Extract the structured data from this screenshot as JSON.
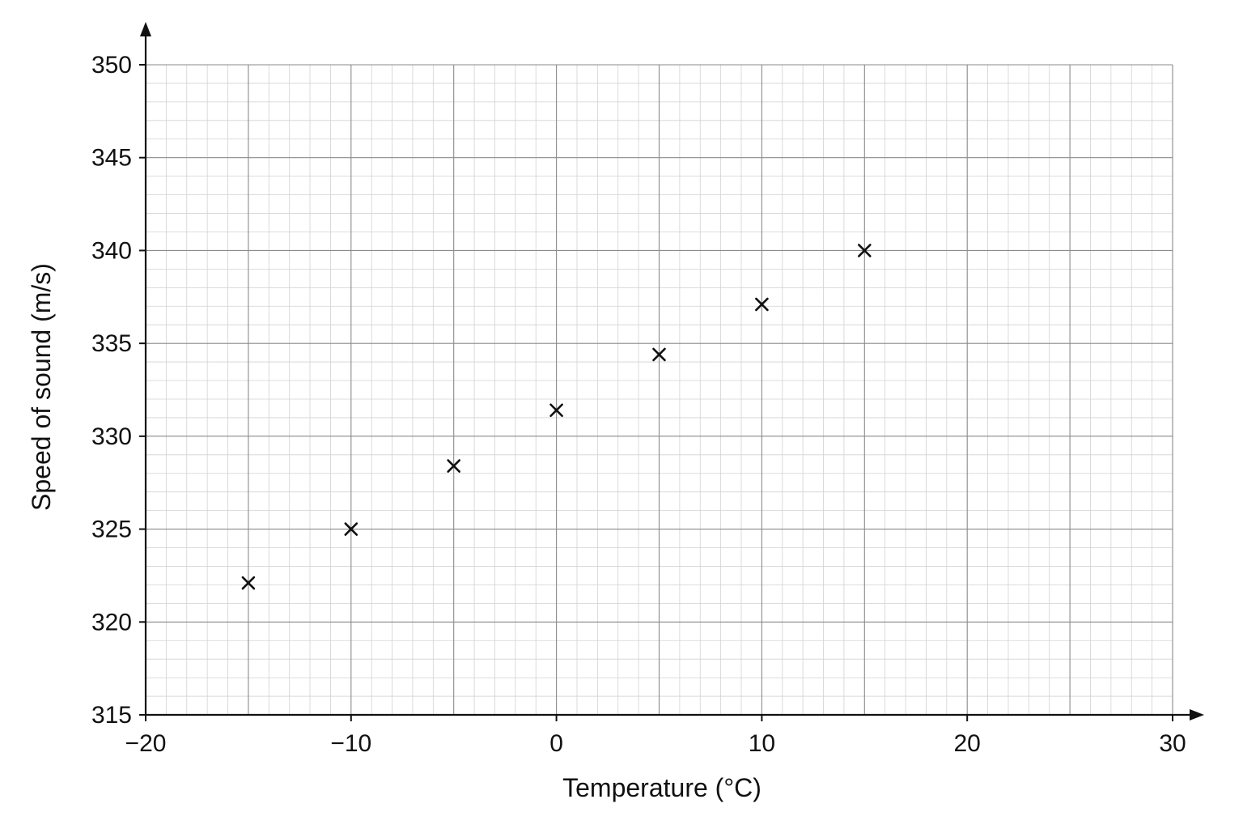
{
  "chart_data": {
    "type": "scatter",
    "title": "",
    "xlabel": "Temperature (°C)",
    "ylabel": "Speed of sound (m/s)",
    "xlim": [
      -20,
      30
    ],
    "ylim": [
      315,
      350
    ],
    "x_ticks": [
      -20,
      -10,
      0,
      10,
      20,
      30
    ],
    "x_tick_labels": [
      "−20",
      "−10",
      "0",
      "10",
      "20",
      "30"
    ],
    "y_ticks": [
      315,
      320,
      325,
      330,
      335,
      340,
      345,
      350
    ],
    "y_tick_labels": [
      "315",
      "320",
      "325",
      "330",
      "335",
      "340",
      "345",
      "350"
    ],
    "grid": true,
    "marker": "x",
    "points": [
      {
        "x": -15,
        "y": 322.1
      },
      {
        "x": -10,
        "y": 325.0
      },
      {
        "x": -5,
        "y": 328.4
      },
      {
        "x": 0,
        "y": 331.4
      },
      {
        "x": 5,
        "y": 334.4
      },
      {
        "x": 10,
        "y": 337.1
      },
      {
        "x": 15,
        "y": 340.0
      }
    ],
    "colors": {
      "grid_major": "#8a8a8a",
      "grid_minor": "#d2d2d2",
      "axis": "#111111",
      "marker": "#111111"
    }
  }
}
